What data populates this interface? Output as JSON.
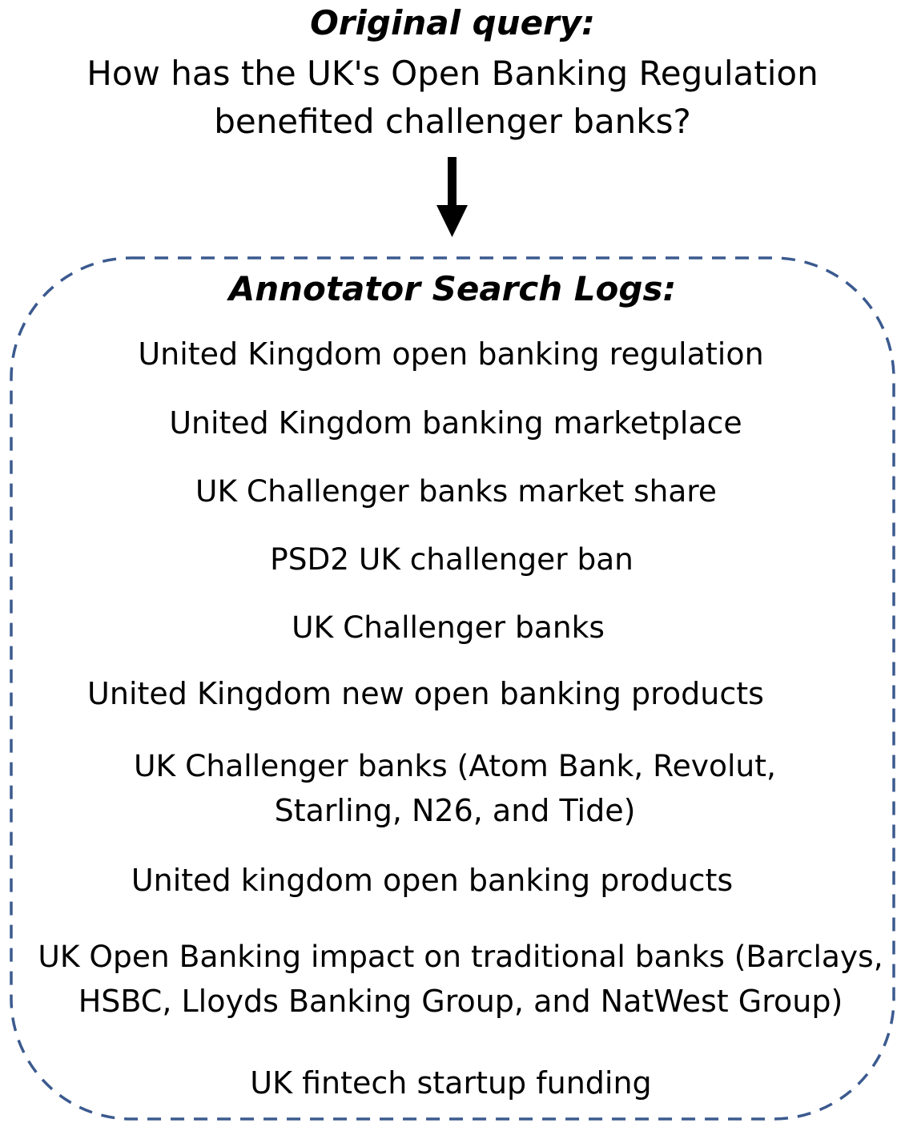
{
  "original_query": {
    "heading": "Original query:",
    "lines": [
      "How has the UK's Open Banking Regulation",
      "benefited challenger banks?"
    ]
  },
  "search_logs": {
    "heading": "Annotator Search Logs:",
    "items": [
      {
        "lines": [
          "United Kingdom open banking regulation"
        ]
      },
      {
        "lines": [
          "United Kingdom banking marketplace"
        ]
      },
      {
        "lines": [
          "UK Challenger banks market share"
        ]
      },
      {
        "lines": [
          "PSD2 UK challenger ban"
        ]
      },
      {
        "lines": [
          "UK Challenger banks"
        ]
      },
      {
        "lines": [
          "United Kingdom new open banking products"
        ]
      },
      {
        "lines": [
          "UK Challenger banks (Atom Bank, Revolut,",
          "Starling, N26, and Tide)"
        ]
      },
      {
        "lines": [
          "United kingdom open banking products"
        ]
      },
      {
        "lines": [
          "UK Open Banking impact on traditional banks (Barclays,",
          "HSBC, Lloyds Banking Group, and NatWest Group)"
        ]
      },
      {
        "lines": [
          "UK fintech startup funding"
        ]
      }
    ]
  },
  "colors": {
    "box_border": "#3b5a8f",
    "arrow": "#000000"
  }
}
